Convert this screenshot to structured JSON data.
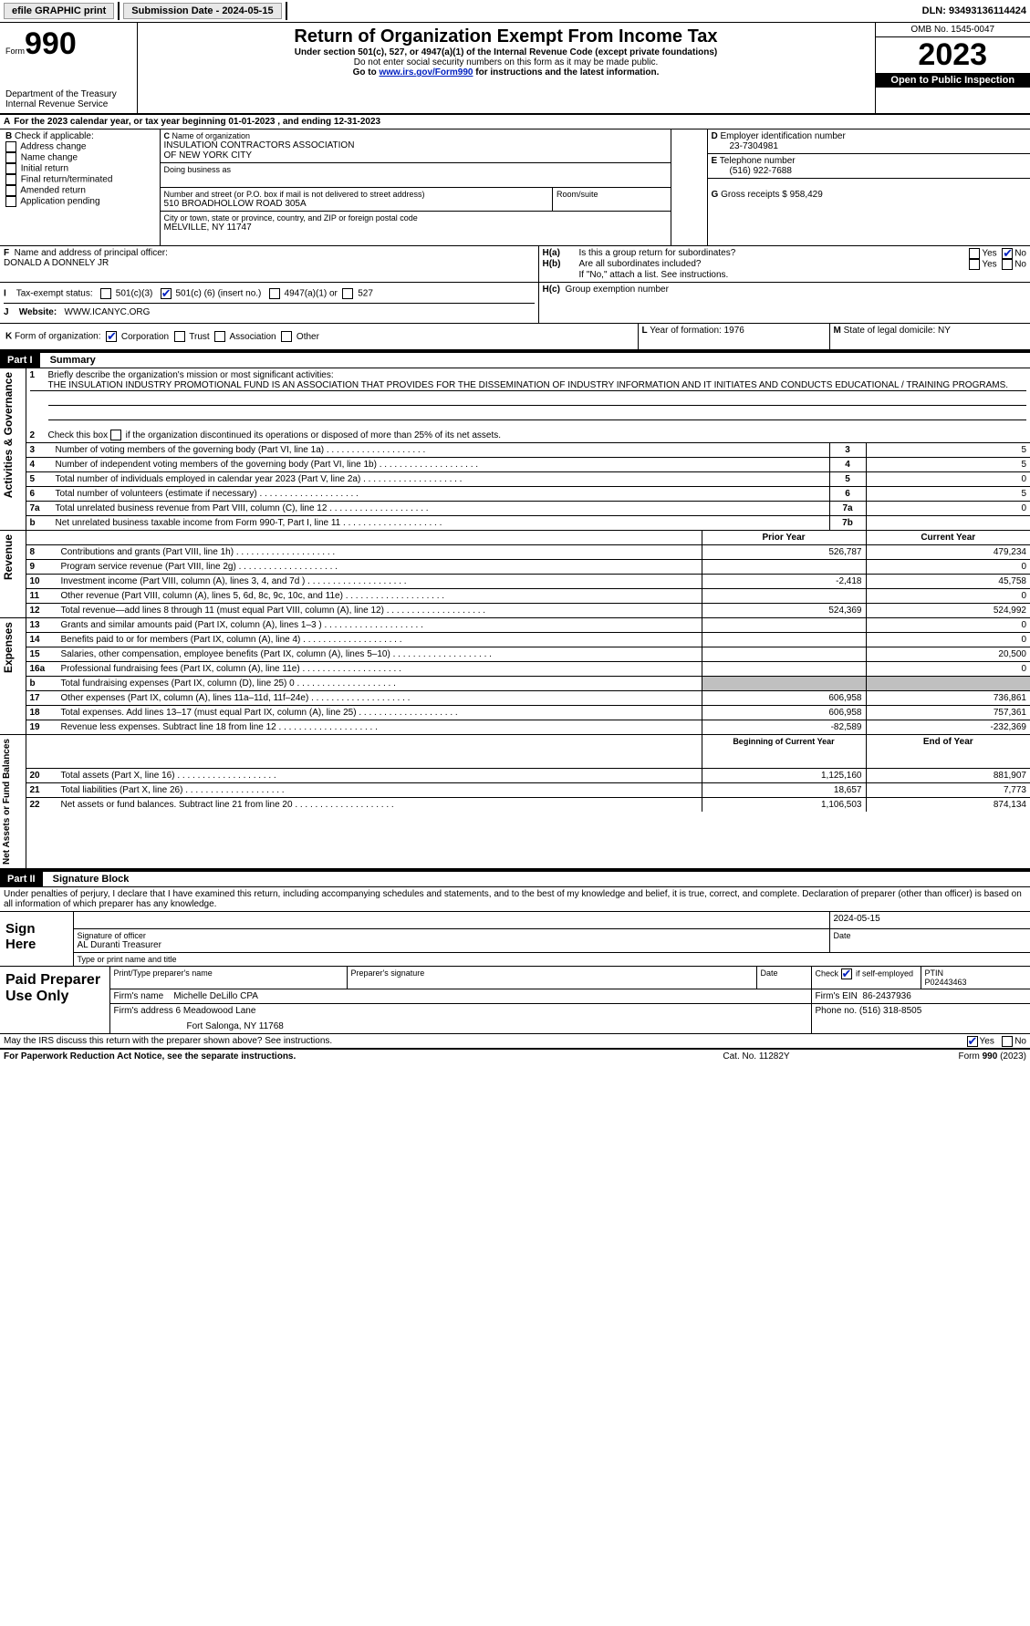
{
  "topbar": {
    "efile_label": "efile GRAPHIC print",
    "submission_label": "Submission Date - 2024-05-15",
    "dln_label": "DLN: 93493136114424"
  },
  "header": {
    "form_word": "Form",
    "form_no": "990",
    "dept": "Department of the Treasury",
    "irs": "Internal Revenue Service",
    "title": "Return of Organization Exempt From Income Tax",
    "subtitle": "Under section 501(c), 527, or 4947(a)(1) of the Internal Revenue Code (except private foundations)",
    "warn": "Do not enter social security numbers on this form as it may be made public.",
    "goto_pre": "Go to ",
    "goto_link": "www.irs.gov/Form990",
    "goto_post": " for instructions and the latest information.",
    "omb": "OMB No. 1545-0047",
    "year": "2023",
    "open": "Open to Public Inspection"
  },
  "A": {
    "line": "For the 2023 calendar year, or tax year beginning 01-01-2023    , and ending 12-31-2023",
    "label": "A"
  },
  "B": {
    "label": "B",
    "prompt": "Check if applicable:",
    "items": [
      "Address change",
      "Name change",
      "Initial return",
      "Final return/terminated",
      "Amended return",
      "Application pending"
    ]
  },
  "C": {
    "label": "C",
    "name_label": "Name of organization",
    "name1": "INSULATION CONTRACTORS ASSOCIATION",
    "name2": "OF NEW YORK CITY",
    "dba_label": "Doing business as",
    "street_label": "Number and street (or P.O. box if mail is not delivered to street address)",
    "room_label": "Room/suite",
    "street": "510 BROADHOLLOW ROAD 305A",
    "city_label": "City or town, state or province, country, and ZIP or foreign postal code",
    "city": "MELVILLE, NY  11747"
  },
  "D": {
    "label": "D",
    "text": "Employer identification number",
    "val": "23-7304981"
  },
  "E": {
    "label": "E",
    "text": "Telephone number",
    "val": "(516) 922-7688"
  },
  "G": {
    "label": "G",
    "text": "Gross receipts $",
    "val": "958,429"
  },
  "F": {
    "label": "F",
    "text": "Name and address of principal officer:",
    "val": "DONALD A DONNELY JR"
  },
  "H": {
    "a_label": "H(a)",
    "a_text": "Is this a group return for subordinates?",
    "b_label": "H(b)",
    "b_text": "Are all subordinates included?",
    "b_note": "If \"No,\" attach a list. See instructions.",
    "c_label": "H(c)",
    "c_text": "Group exemption number",
    "yes": "Yes",
    "no": "No",
    "a_checked": "no"
  },
  "I": {
    "label": "I",
    "text": "Tax-exempt status:",
    "o1": "501(c)(3)",
    "o2_pre": "501(c) (",
    "o2_val": "6",
    "o2_post": ") (insert no.)",
    "o3": "4947(a)(1) or",
    "o4": "527",
    "checked": "o2"
  },
  "J": {
    "label": "J",
    "text": "Website:",
    "val": "WWW.ICANYC.ORG"
  },
  "K": {
    "label": "K",
    "text": "Form of organization:",
    "opts": [
      "Corporation",
      "Trust",
      "Association",
      "Other"
    ],
    "checked": 0
  },
  "L": {
    "label": "L",
    "text": "Year of formation:",
    "val": "1976"
  },
  "M": {
    "label": "M",
    "text": "State of legal domicile:",
    "val": "NY"
  },
  "part1": {
    "bar": "Part I",
    "title": "Summary"
  },
  "summary": {
    "l1_label": "1",
    "l1_text": "Briefly describe the organization's mission or most significant activities:",
    "l1_val": "THE INSULATION INDUSTRY PROMOTIONAL FUND IS AN ASSOCIATION THAT PROVIDES FOR THE DISSEMINATION OF INDUSTRY INFORMATION AND IT INITIATES AND CONDUCTS EDUCATIONAL / TRAINING PROGRAMS.",
    "l2_label": "2",
    "l2_text": "Check this box          if the organization discontinued its operations or disposed of more than 25% of its net assets.",
    "rows_ag": [
      {
        "n": "3",
        "t": "Number of voting members of the governing body (Part VI, line 1a)",
        "box": "3",
        "v": "5"
      },
      {
        "n": "4",
        "t": "Number of independent voting members of the governing body (Part VI, line 1b)",
        "box": "4",
        "v": "5"
      },
      {
        "n": "5",
        "t": "Total number of individuals employed in calendar year 2023 (Part V, line 2a)",
        "box": "5",
        "v": "0"
      },
      {
        "n": "6",
        "t": "Total number of volunteers (estimate if necessary)",
        "box": "6",
        "v": "5"
      },
      {
        "n": "7a",
        "t": "Total unrelated business revenue from Part VIII, column (C), line 12",
        "box": "7a",
        "v": "0"
      },
      {
        "n": "b",
        "t": "Net unrelated business taxable income from Form 990-T, Part I, line 11",
        "box": "7b",
        "v": ""
      }
    ],
    "col_prior": "Prior Year",
    "col_curr": "Current Year",
    "rev": [
      {
        "n": "8",
        "t": "Contributions and grants (Part VIII, line 1h)",
        "p": "526,787",
        "c": "479,234"
      },
      {
        "n": "9",
        "t": "Program service revenue (Part VIII, line 2g)",
        "p": "",
        "c": "0"
      },
      {
        "n": "10",
        "t": "Investment income (Part VIII, column (A), lines 3, 4, and 7d )",
        "p": "-2,418",
        "c": "45,758"
      },
      {
        "n": "11",
        "t": "Other revenue (Part VIII, column (A), lines 5, 6d, 8c, 9c, 10c, and 11e)",
        "p": "",
        "c": "0"
      },
      {
        "n": "12",
        "t": "Total revenue—add lines 8 through 11 (must equal Part VIII, column (A), line 12)",
        "p": "524,369",
        "c": "524,992"
      }
    ],
    "exp": [
      {
        "n": "13",
        "t": "Grants and similar amounts paid (Part IX, column (A), lines 1–3 )",
        "p": "",
        "c": "0"
      },
      {
        "n": "14",
        "t": "Benefits paid to or for members (Part IX, column (A), line 4)",
        "p": "",
        "c": "0"
      },
      {
        "n": "15",
        "t": "Salaries, other compensation, employee benefits (Part IX, column (A), lines 5–10)",
        "p": "",
        "c": "20,500"
      },
      {
        "n": "16a",
        "t": "Professional fundraising fees (Part IX, column (A), line 11e)",
        "p": "",
        "c": "0"
      },
      {
        "n": "b",
        "t": "Total fundraising expenses (Part IX, column (D), line 25) 0",
        "p": "GREY",
        "c": "GREY"
      },
      {
        "n": "17",
        "t": "Other expenses (Part IX, column (A), lines 11a–11d, 11f–24e)",
        "p": "606,958",
        "c": "736,861"
      },
      {
        "n": "18",
        "t": "Total expenses. Add lines 13–17 (must equal Part IX, column (A), line 25)",
        "p": "606,958",
        "c": "757,361"
      },
      {
        "n": "19",
        "t": "Revenue less expenses. Subtract line 18 from line 12",
        "p": "-82,589",
        "c": "-232,369"
      }
    ],
    "col_begin": "Beginning of Current Year",
    "col_end": "End of the Year",
    "col_end_disp": "End of Year",
    "na": [
      {
        "n": "20",
        "t": "Total assets (Part X, line 16)",
        "p": "1,125,160",
        "c": "881,907"
      },
      {
        "n": "21",
        "t": "Total liabilities (Part X, line 26)",
        "p": "18,657",
        "c": "7,773"
      },
      {
        "n": "22",
        "t": "Net assets or fund balances. Subtract line 21 from line 20",
        "p": "1,106,503",
        "c": "874,134"
      }
    ],
    "side_ag": "Activities & Governance",
    "side_rev": "Revenue",
    "side_exp": "Expenses",
    "side_na": "Net Assets or Fund Balances"
  },
  "part2": {
    "bar": "Part II",
    "title": "Signature Block"
  },
  "sig": {
    "decl": "Under penalties of perjury, I declare that I have examined this return, including accompanying schedules and statements, and to the best of my knowledge and belief, it is true, correct, and complete. Declaration of preparer (other than officer) is based on all information of which preparer has any knowledge.",
    "sign_here": "Sign Here",
    "sig_officer": "Signature of officer",
    "date": "Date",
    "date_val": "2024-05-15",
    "officer_name": "AL Duranti Treasurer",
    "type_name": "Type or print name and title",
    "paid": "Paid Preparer Use Only",
    "pp_name_label": "Print/Type preparer's name",
    "pp_sig_label": "Preparer's signature",
    "pp_date_label": "Date",
    "pp_check_label": "Check        if self-employed",
    "pp_ptin_label": "PTIN",
    "pp_ptin": "P02443463",
    "firm_name_label": "Firm's name",
    "firm_name": "Michelle DeLillo CPA",
    "firm_ein_label": "Firm's EIN",
    "firm_ein": "86-2437936",
    "firm_addr_label": "Firm's address",
    "firm_addr1": "6 Meadowood Lane",
    "firm_addr2": "Fort Salonga, NY  11768",
    "phone_label": "Phone no.",
    "phone": "(516) 318-8505",
    "discuss": "May the IRS discuss this return with the preparer shown above? See instructions.",
    "yes": "Yes",
    "no": "No",
    "discuss_checked": "yes"
  },
  "footer": {
    "left": "For Paperwork Reduction Act Notice, see the separate instructions.",
    "mid": "Cat. No. 11282Y",
    "right": "Form 990 (2023)",
    "right_form": "990"
  },
  "colors": {
    "link": "#0020c0",
    "grey": "#c0c0c0",
    "btn_bg": "#e8e8e8"
  }
}
